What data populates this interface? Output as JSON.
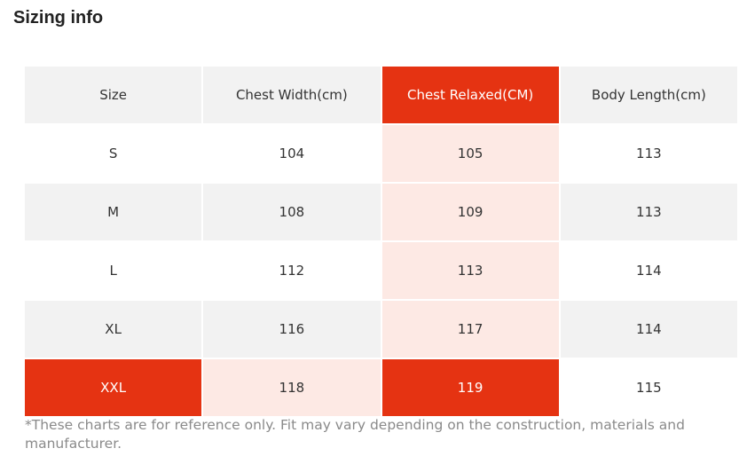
{
  "title": "Sizing info",
  "table": {
    "header": [
      "Size",
      "Chest Width(cm)",
      "Chest Relaxed(CM)",
      "Body Length(cm)"
    ],
    "rows": [
      [
        "S",
        104,
        105,
        113
      ],
      [
        "M",
        108,
        109,
        113
      ],
      [
        "L",
        112,
        113,
        114
      ],
      [
        "XL",
        116,
        117,
        114
      ],
      [
        "XXL",
        118,
        119,
        115
      ]
    ]
  },
  "footnote": "*These charts are for reference only. Fit may vary depending on the construction, materials and manufacturer."
}
